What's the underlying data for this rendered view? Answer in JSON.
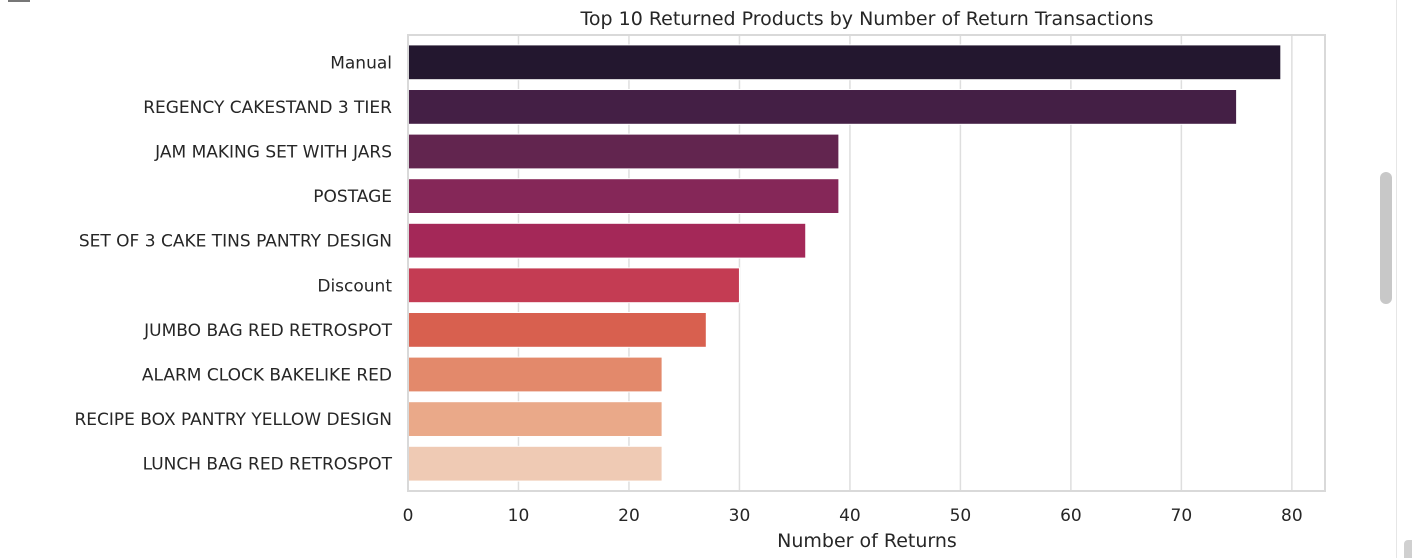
{
  "chart_data": {
    "type": "bar",
    "orientation": "horizontal",
    "title": "Top 10 Returned Products by Number of Return Transactions",
    "xlabel": "Number of Returns",
    "ylabel": "",
    "xlim": [
      0,
      83
    ],
    "xticks": [
      0,
      10,
      20,
      30,
      40,
      50,
      60,
      70,
      80
    ],
    "grid": true,
    "categories": [
      "Manual",
      "REGENCY CAKESTAND 3 TIER",
      "JAM MAKING SET WITH JARS",
      "POSTAGE",
      "SET OF 3 CAKE TINS PANTRY DESIGN",
      "Discount",
      "JUMBO BAG RED RETROSPOT",
      "ALARM CLOCK BAKELIKE RED",
      "RECIPE BOX PANTRY YELLOW DESIGN",
      "LUNCH BAG RED RETROSPOT"
    ],
    "values": [
      79,
      75,
      39,
      39,
      36,
      30,
      27,
      23,
      23,
      23
    ],
    "colors": [
      "#23172f",
      "#441f45",
      "#62254f",
      "#852758",
      "#a42858",
      "#c43c53",
      "#d8604f",
      "#e3896b",
      "#eaa989",
      "#efcab4"
    ]
  }
}
